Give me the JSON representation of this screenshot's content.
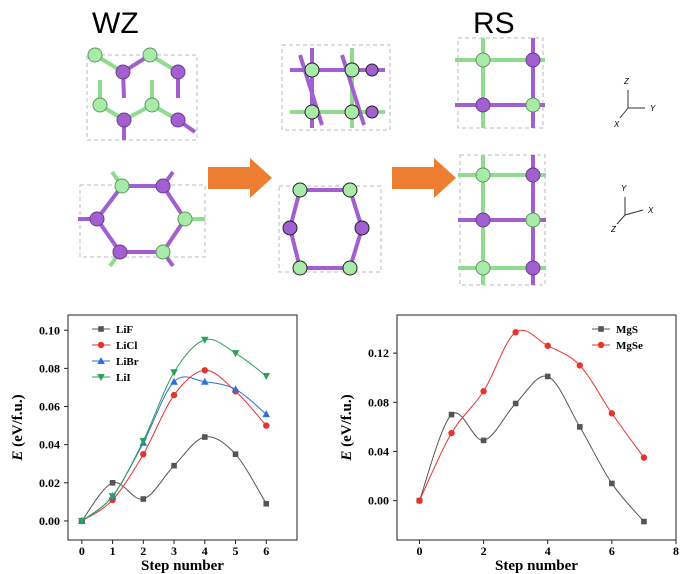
{
  "figure": {
    "labels": {
      "wz": "WZ",
      "rs": "RS"
    },
    "axes_top": {
      "z": "Z",
      "y": "Y",
      "x": "X"
    },
    "axes_bottom": {
      "y": "Y",
      "x": "X",
      "z": "Z"
    }
  },
  "chart_data": [
    {
      "type": "line",
      "xlabel": "Step number",
      "ylabel_symbol": "E",
      "ylabel": "(eV/f.u.)",
      "x": [
        0,
        1,
        2,
        3,
        4,
        5,
        6
      ],
      "xlim": [
        -0.45,
        7
      ],
      "xticks": [
        0,
        1,
        2,
        3,
        4,
        5,
        6
      ],
      "ylim": [
        -0.01,
        0.108
      ],
      "yticks": [
        {
          "value": 0,
          "label": "0.00"
        },
        {
          "value": 0.02,
          "label": "0.02"
        },
        {
          "value": 0.04,
          "label": "0.04"
        },
        {
          "value": 0.06,
          "label": "0.06"
        },
        {
          "value": 0.08,
          "label": "0.08"
        },
        {
          "value": 0.1,
          "label": "0.10"
        }
      ],
      "legend": "upper left",
      "series": [
        {
          "name": "LiF",
          "color": "#555555",
          "marker": "square",
          "values": [
            0,
            0.02,
            0.0115,
            0.029,
            0.044,
            0.035,
            0.009
          ]
        },
        {
          "name": "LiCl",
          "color": "#e8322e",
          "marker": "circle",
          "values": [
            0,
            0.011,
            0.035,
            0.066,
            0.079,
            0.068,
            0.05
          ]
        },
        {
          "name": "LiBr",
          "color": "#2e6fd8",
          "marker": "triangle-up",
          "values": [
            0,
            0.013,
            0.041,
            0.073,
            0.073,
            0.069,
            0.056
          ]
        },
        {
          "name": "LiI",
          "color": "#2ca05a",
          "marker": "triangle-down",
          "values": [
            0,
            0.013,
            0.042,
            0.078,
            0.095,
            0.088,
            0.076
          ]
        }
      ]
    },
    {
      "type": "line",
      "xlabel": "Step number",
      "ylabel_symbol": "E",
      "ylabel": "(eV/f.u.)",
      "x": [
        0,
        1,
        2,
        3,
        4,
        5,
        6,
        7
      ],
      "xlim": [
        -0.7,
        8
      ],
      "xticks": [
        0,
        2,
        4,
        6,
        8
      ],
      "ylim": [
        -0.032,
        0.151
      ],
      "yticks": [
        {
          "value": 0,
          "label": "0.00"
        },
        {
          "value": 0.04,
          "label": "0.04"
        },
        {
          "value": 0.08,
          "label": "0.08"
        },
        {
          "value": 0.12,
          "label": "0.12"
        }
      ],
      "legend": "upper right",
      "series": [
        {
          "name": "MgS",
          "color": "#555555",
          "marker": "square",
          "values": [
            0,
            0.07,
            0.049,
            0.079,
            0.101,
            0.06,
            0.014,
            -0.017
          ]
        },
        {
          "name": "MgSe",
          "color": "#e8322e",
          "marker": "circle",
          "values": [
            0,
            0.055,
            0.089,
            0.137,
            0.126,
            0.11,
            0.071,
            0.035
          ]
        }
      ]
    }
  ]
}
